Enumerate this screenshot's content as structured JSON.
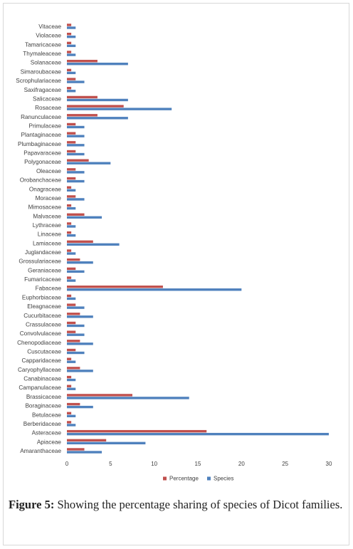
{
  "figure": {
    "label": "Figure 5:",
    "text": "Showing the percentage sharing of species of Dicot families."
  },
  "chart_data": {
    "type": "bar",
    "orientation": "horizontal",
    "title": "",
    "xlabel": "",
    "ylabel": "",
    "xlim": [
      0,
      30
    ],
    "xticks": [
      0,
      5,
      10,
      15,
      20,
      25,
      30
    ],
    "grid": false,
    "legend_position": "bottom",
    "colors": {
      "Percentage": "#c0504d",
      "Species": "#4f81bd"
    },
    "categories": [
      "Amaranthaceae",
      "Apiaceae",
      "Asteraceae",
      "Berberidaceae",
      "Betulaceae",
      "Boraginaceae",
      "Brassicaceae",
      "Campanulaceae",
      "Canabinaceae",
      "Caryophyllaceae",
      "Capparidaceae",
      "Cuscutaceae",
      "Chenopodiaceae",
      "Convolvulaceae",
      "Crassulaceae",
      "Cucurbitaceae",
      "Eleagnaceae",
      "Euphorbiaceae",
      "Fabaceae",
      "Fumaricaceae",
      "Geraniaceae",
      "Grossulariaceae",
      "Juglandaceae",
      "Lamiaceae",
      "Linaceae",
      "Lythraceae",
      "Malvaceae",
      "Mimosaceae",
      "Moraceae",
      "Onagraceae",
      "Orobanchaceae",
      "Oleaceae",
      "Polygonaceae",
      "Papavaraceae",
      "Plumbaginaceae",
      "Plantaginaceae",
      "Primulaceae",
      "Ranunculaceae",
      "Rosaceae",
      "Salicaceae",
      "Saxifragaceae",
      "Scrophulariaceae",
      "Simaroubaceae",
      "Solanaceae",
      "Thymaleaceae",
      "Tamaricaceae",
      "Violaceae",
      "Vitaceae"
    ],
    "series": [
      {
        "name": "Percentage",
        "values": [
          2,
          4.5,
          16,
          0.5,
          0.5,
          1.5,
          7.5,
          0.5,
          0.5,
          1.5,
          0.5,
          1,
          1.5,
          1,
          1,
          1.5,
          1,
          0.5,
          11,
          0.5,
          1,
          1.5,
          0.5,
          3,
          0.5,
          0.5,
          2,
          0.5,
          1,
          0.5,
          1,
          1,
          2.5,
          1,
          1,
          1,
          1,
          3.5,
          6.5,
          3.5,
          0.5,
          1,
          0.5,
          3.5,
          0.5,
          0.5,
          0.5,
          0.5
        ]
      },
      {
        "name": "Species",
        "values": [
          4,
          9,
          30,
          1,
          1,
          3,
          14,
          1,
          1,
          3,
          1,
          2,
          3,
          2,
          2,
          3,
          2,
          1,
          20,
          1,
          2,
          3,
          1,
          6,
          1,
          1,
          4,
          1,
          2,
          1,
          2,
          2,
          5,
          2,
          2,
          2,
          2,
          7,
          12,
          7,
          1,
          2,
          1,
          7,
          1,
          1,
          1,
          1
        ]
      }
    ]
  }
}
